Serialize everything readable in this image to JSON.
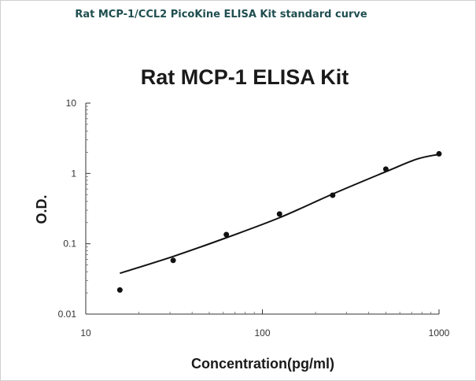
{
  "caption": "Rat MCP-1/CCL2 PicoKine ELISA Kit standard curve",
  "chart_data": {
    "type": "scatter",
    "title": "Rat MCP-1 ELISA Kit",
    "xlabel": "Concentration(pg/ml)",
    "ylabel": "O.D.",
    "xscale": "log",
    "yscale": "log",
    "xlim": [
      10,
      1000
    ],
    "ylim": [
      0.01,
      10
    ],
    "x_ticks": [
      10,
      100,
      1000
    ],
    "x_tick_labels": [
      "10",
      "100",
      "1000"
    ],
    "y_ticks": [
      10,
      1,
      0.1,
      0.01
    ],
    "y_tick_labels": [
      "10",
      "1",
      "0.1",
      "0.01"
    ],
    "grid": false,
    "series": [
      {
        "mode": "markers",
        "color": "#111111",
        "x": [
          15.6,
          31.25,
          62.5,
          125,
          250,
          500,
          1000
        ],
        "y": [
          0.022,
          0.058,
          0.135,
          0.265,
          0.49,
          1.15,
          1.9
        ]
      },
      {
        "mode": "line",
        "color": "#111111",
        "x": [
          15.6,
          31.25,
          62.5,
          125,
          250,
          500,
          750,
          1000
        ],
        "y": [
          0.038,
          0.066,
          0.122,
          0.235,
          0.51,
          1.06,
          1.6,
          1.87
        ]
      }
    ]
  }
}
